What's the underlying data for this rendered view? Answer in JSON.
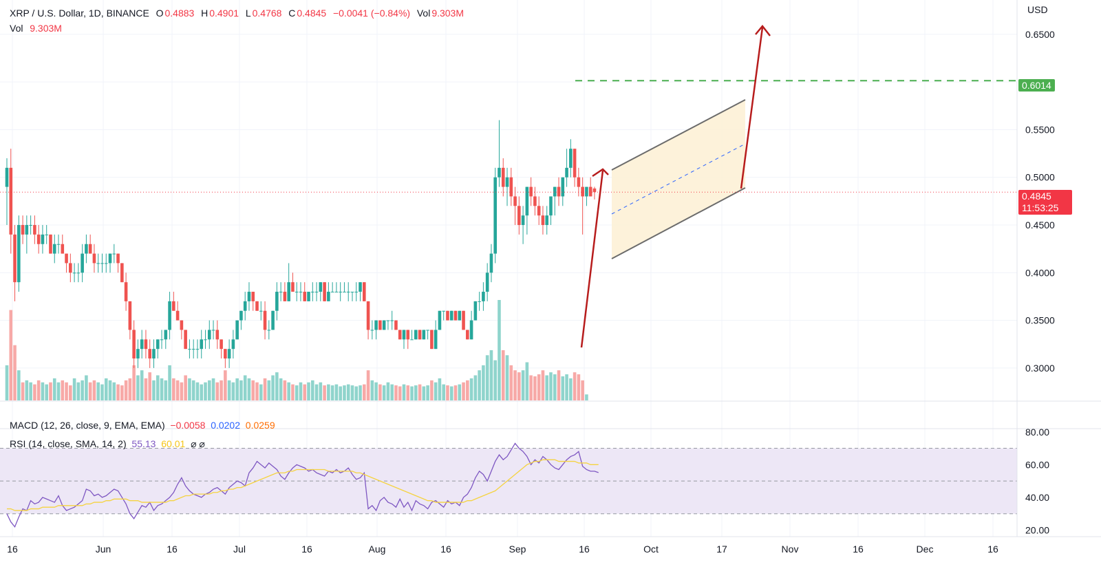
{
  "header": {
    "symbol": "XRP / U.S. Dollar, 1D, BINANCE",
    "o_label": "O",
    "o_value": "0.4883",
    "h_label": "H",
    "h_value": "0.4901",
    "l_label": "L",
    "l_value": "0.4768",
    "c_label": "C",
    "c_value": "0.4845",
    "change": "−0.0041 (−0.84%)",
    "vol_label": "Vol",
    "vol_value": "9.303M",
    "vol2_label": "Vol",
    "vol2_value": "9.303M"
  },
  "macd": {
    "label": "MACD (12, 26, close, 9, EMA, EMA)",
    "v1": "−0.0058",
    "v2": "0.0202",
    "v3": "0.0259"
  },
  "rsi": {
    "label": "RSI (14, close, SMA, 14, 2)",
    "v1": "55.13",
    "v2": "60.01",
    "icons": "⌀ ⌀"
  },
  "price_axis": {
    "unit": "USD",
    "ticks": [
      "0.6500",
      "0.5500",
      "0.5000",
      "0.4500",
      "0.4000",
      "0.3500",
      "0.3000"
    ],
    "last_price": "0.4845",
    "countdown": "11:53:25",
    "target_label": "0.6014"
  },
  "rsi_axis": {
    "ticks": [
      "80.00",
      "60.00",
      "40.00",
      "20.00"
    ]
  },
  "time_axis": [
    "16",
    "Jun",
    "16",
    "Jul",
    "16",
    "Aug",
    "16",
    "Sep",
    "16",
    "Oct",
    "17",
    "Nov",
    "16",
    "Dec",
    "16"
  ],
  "colors": {
    "up": "#26a69a",
    "down": "#ef5350",
    "vol_up": "#8fd4cc",
    "vol_down": "#f7a9a7",
    "target_line": "#4caf50",
    "arrow": "#b71c1c",
    "channel_fill": "#fdf1d6",
    "channel_line": "#6b6b6b",
    "rsi_line": "#7e57c2",
    "rsi_sma": "#f5d33f",
    "rsi_band": "#ede7f6"
  },
  "chart_data": {
    "type": "candlestick",
    "ylim": [
      0.266,
      0.686
    ],
    "target_level": 0.6014,
    "last_price": 0.4845,
    "ohlc": [
      [
        0.49,
        0.52,
        0.45,
        0.51
      ],
      [
        0.51,
        0.53,
        0.42,
        0.44
      ],
      [
        0.44,
        0.45,
        0.37,
        0.39
      ],
      [
        0.39,
        0.46,
        0.38,
        0.45
      ],
      [
        0.45,
        0.46,
        0.43,
        0.44
      ],
      [
        0.44,
        0.46,
        0.42,
        0.45
      ],
      [
        0.45,
        0.46,
        0.44,
        0.45
      ],
      [
        0.45,
        0.46,
        0.43,
        0.44
      ],
      [
        0.44,
        0.45,
        0.42,
        0.43
      ],
      [
        0.43,
        0.45,
        0.42,
        0.44
      ],
      [
        0.44,
        0.45,
        0.43,
        0.44
      ],
      [
        0.44,
        0.44,
        0.42,
        0.42
      ],
      [
        0.42,
        0.44,
        0.41,
        0.43
      ],
      [
        0.43,
        0.44,
        0.42,
        0.43
      ],
      [
        0.43,
        0.44,
        0.42,
        0.42
      ],
      [
        0.42,
        0.42,
        0.4,
        0.41
      ],
      [
        0.41,
        0.42,
        0.39,
        0.4
      ],
      [
        0.4,
        0.41,
        0.39,
        0.4
      ],
      [
        0.4,
        0.41,
        0.39,
        0.4
      ],
      [
        0.4,
        0.43,
        0.39,
        0.42
      ],
      [
        0.42,
        0.44,
        0.41,
        0.43
      ],
      [
        0.43,
        0.44,
        0.42,
        0.42
      ],
      [
        0.42,
        0.43,
        0.4,
        0.41
      ],
      [
        0.41,
        0.42,
        0.4,
        0.41
      ],
      [
        0.41,
        0.42,
        0.4,
        0.41
      ],
      [
        0.41,
        0.42,
        0.4,
        0.41
      ],
      [
        0.41,
        0.42,
        0.4,
        0.42
      ],
      [
        0.42,
        0.43,
        0.41,
        0.42
      ],
      [
        0.42,
        0.42,
        0.4,
        0.41
      ],
      [
        0.41,
        0.41,
        0.39,
        0.39
      ],
      [
        0.39,
        0.4,
        0.36,
        0.37
      ],
      [
        0.37,
        0.37,
        0.33,
        0.34
      ],
      [
        0.34,
        0.35,
        0.3,
        0.31
      ],
      [
        0.31,
        0.33,
        0.3,
        0.32
      ],
      [
        0.32,
        0.34,
        0.31,
        0.33
      ],
      [
        0.33,
        0.34,
        0.31,
        0.32
      ],
      [
        0.32,
        0.33,
        0.3,
        0.31
      ],
      [
        0.31,
        0.33,
        0.3,
        0.32
      ],
      [
        0.32,
        0.33,
        0.31,
        0.33
      ],
      [
        0.33,
        0.34,
        0.32,
        0.33
      ],
      [
        0.33,
        0.34,
        0.32,
        0.34
      ],
      [
        0.34,
        0.38,
        0.33,
        0.37
      ],
      [
        0.37,
        0.38,
        0.36,
        0.36
      ],
      [
        0.36,
        0.37,
        0.35,
        0.35
      ],
      [
        0.35,
        0.35,
        0.33,
        0.34
      ],
      [
        0.34,
        0.34,
        0.32,
        0.32
      ],
      [
        0.32,
        0.33,
        0.31,
        0.32
      ],
      [
        0.32,
        0.33,
        0.31,
        0.32
      ],
      [
        0.32,
        0.33,
        0.31,
        0.32
      ],
      [
        0.32,
        0.34,
        0.31,
        0.33
      ],
      [
        0.33,
        0.34,
        0.32,
        0.33
      ],
      [
        0.33,
        0.35,
        0.32,
        0.34
      ],
      [
        0.34,
        0.35,
        0.33,
        0.34
      ],
      [
        0.34,
        0.35,
        0.32,
        0.33
      ],
      [
        0.33,
        0.33,
        0.31,
        0.32
      ],
      [
        0.32,
        0.32,
        0.3,
        0.31
      ],
      [
        0.31,
        0.33,
        0.3,
        0.32
      ],
      [
        0.32,
        0.34,
        0.31,
        0.33
      ],
      [
        0.33,
        0.35,
        0.33,
        0.35
      ],
      [
        0.35,
        0.36,
        0.34,
        0.36
      ],
      [
        0.36,
        0.38,
        0.35,
        0.37
      ],
      [
        0.37,
        0.39,
        0.36,
        0.38
      ],
      [
        0.38,
        0.38,
        0.36,
        0.37
      ],
      [
        0.37,
        0.37,
        0.36,
        0.36
      ],
      [
        0.36,
        0.37,
        0.35,
        0.36
      ],
      [
        0.36,
        0.37,
        0.33,
        0.34
      ],
      [
        0.34,
        0.35,
        0.33,
        0.34
      ],
      [
        0.34,
        0.36,
        0.34,
        0.36
      ],
      [
        0.36,
        0.39,
        0.35,
        0.38
      ],
      [
        0.38,
        0.39,
        0.37,
        0.38
      ],
      [
        0.38,
        0.39,
        0.37,
        0.37
      ],
      [
        0.37,
        0.41,
        0.37,
        0.39
      ],
      [
        0.39,
        0.4,
        0.38,
        0.38
      ],
      [
        0.38,
        0.39,
        0.37,
        0.38
      ],
      [
        0.38,
        0.39,
        0.37,
        0.38
      ],
      [
        0.38,
        0.39,
        0.37,
        0.37
      ],
      [
        0.37,
        0.38,
        0.37,
        0.38
      ],
      [
        0.38,
        0.39,
        0.37,
        0.38
      ],
      [
        0.38,
        0.39,
        0.37,
        0.38
      ],
      [
        0.38,
        0.39,
        0.37,
        0.39
      ],
      [
        0.39,
        0.39,
        0.37,
        0.37
      ],
      [
        0.37,
        0.39,
        0.37,
        0.38
      ],
      [
        0.38,
        0.39,
        0.38,
        0.38
      ],
      [
        0.38,
        0.39,
        0.38,
        0.38
      ],
      [
        0.38,
        0.39,
        0.37,
        0.38
      ],
      [
        0.38,
        0.39,
        0.38,
        0.38
      ],
      [
        0.38,
        0.39,
        0.37,
        0.38
      ],
      [
        0.38,
        0.38,
        0.37,
        0.38
      ],
      [
        0.38,
        0.39,
        0.37,
        0.38
      ],
      [
        0.38,
        0.39,
        0.37,
        0.39
      ],
      [
        0.39,
        0.39,
        0.37,
        0.37
      ],
      [
        0.37,
        0.37,
        0.33,
        0.34
      ],
      [
        0.34,
        0.35,
        0.33,
        0.34
      ],
      [
        0.34,
        0.35,
        0.33,
        0.35
      ],
      [
        0.35,
        0.35,
        0.34,
        0.34
      ],
      [
        0.34,
        0.35,
        0.34,
        0.35
      ],
      [
        0.35,
        0.35,
        0.34,
        0.35
      ],
      [
        0.35,
        0.36,
        0.34,
        0.35
      ],
      [
        0.35,
        0.35,
        0.34,
        0.34
      ],
      [
        0.34,
        0.34,
        0.33,
        0.33
      ],
      [
        0.33,
        0.34,
        0.32,
        0.34
      ],
      [
        0.34,
        0.34,
        0.32,
        0.33
      ],
      [
        0.33,
        0.34,
        0.33,
        0.33
      ],
      [
        0.33,
        0.34,
        0.33,
        0.34
      ],
      [
        0.34,
        0.34,
        0.33,
        0.33
      ],
      [
        0.33,
        0.34,
        0.33,
        0.34
      ],
      [
        0.34,
        0.34,
        0.33,
        0.34
      ],
      [
        0.34,
        0.34,
        0.32,
        0.32
      ],
      [
        0.32,
        0.35,
        0.32,
        0.34
      ],
      [
        0.34,
        0.36,
        0.34,
        0.36
      ],
      [
        0.36,
        0.36,
        0.35,
        0.36
      ],
      [
        0.36,
        0.36,
        0.35,
        0.35
      ],
      [
        0.35,
        0.36,
        0.35,
        0.36
      ],
      [
        0.36,
        0.36,
        0.35,
        0.35
      ],
      [
        0.35,
        0.36,
        0.35,
        0.36
      ],
      [
        0.36,
        0.36,
        0.34,
        0.34
      ],
      [
        0.34,
        0.34,
        0.33,
        0.33
      ],
      [
        0.33,
        0.36,
        0.33,
        0.35
      ],
      [
        0.35,
        0.37,
        0.35,
        0.37
      ],
      [
        0.37,
        0.38,
        0.36,
        0.37
      ],
      [
        0.37,
        0.39,
        0.36,
        0.38
      ],
      [
        0.38,
        0.41,
        0.37,
        0.4
      ],
      [
        0.4,
        0.43,
        0.39,
        0.42
      ],
      [
        0.42,
        0.51,
        0.41,
        0.5
      ],
      [
        0.5,
        0.56,
        0.49,
        0.51
      ],
      [
        0.51,
        0.52,
        0.48,
        0.49
      ],
      [
        0.49,
        0.51,
        0.47,
        0.5
      ],
      [
        0.5,
        0.51,
        0.47,
        0.48
      ],
      [
        0.48,
        0.49,
        0.45,
        0.47
      ],
      [
        0.47,
        0.48,
        0.44,
        0.45
      ],
      [
        0.45,
        0.47,
        0.43,
        0.46
      ],
      [
        0.46,
        0.49,
        0.44,
        0.49
      ],
      [
        0.49,
        0.5,
        0.47,
        0.48
      ],
      [
        0.48,
        0.49,
        0.46,
        0.47
      ],
      [
        0.47,
        0.48,
        0.45,
        0.46
      ],
      [
        0.46,
        0.47,
        0.44,
        0.45
      ],
      [
        0.45,
        0.47,
        0.44,
        0.46
      ],
      [
        0.46,
        0.48,
        0.45,
        0.48
      ],
      [
        0.48,
        0.49,
        0.46,
        0.49
      ],
      [
        0.49,
        0.5,
        0.47,
        0.48
      ],
      [
        0.48,
        0.5,
        0.47,
        0.5
      ],
      [
        0.5,
        0.53,
        0.49,
        0.51
      ],
      [
        0.51,
        0.54,
        0.5,
        0.53
      ],
      [
        0.53,
        0.53,
        0.49,
        0.5
      ],
      [
        0.5,
        0.51,
        0.48,
        0.49
      ],
      [
        0.49,
        0.5,
        0.44,
        0.48
      ],
      [
        0.48,
        0.49,
        0.47,
        0.49
      ],
      [
        0.49,
        0.5,
        0.48,
        0.48
      ],
      [
        0.4883,
        0.4901,
        0.4768,
        0.4845
      ]
    ],
    "volume_rel": [
      0.35,
      0.9,
      0.55,
      0.3,
      0.18,
      0.2,
      0.18,
      0.16,
      0.2,
      0.18,
      0.16,
      0.18,
      0.22,
      0.18,
      0.2,
      0.18,
      0.15,
      0.22,
      0.18,
      0.2,
      0.25,
      0.18,
      0.2,
      0.18,
      0.16,
      0.22,
      0.2,
      0.18,
      0.16,
      0.15,
      0.2,
      0.22,
      0.35,
      0.25,
      0.3,
      0.22,
      0.28,
      0.2,
      0.25,
      0.22,
      0.2,
      0.35,
      0.22,
      0.2,
      0.18,
      0.25,
      0.22,
      0.2,
      0.18,
      0.16,
      0.18,
      0.2,
      0.22,
      0.18,
      0.2,
      0.3,
      0.2,
      0.18,
      0.22,
      0.2,
      0.25,
      0.22,
      0.2,
      0.18,
      0.16,
      0.22,
      0.2,
      0.25,
      0.28,
      0.22,
      0.2,
      0.18,
      0.16,
      0.15,
      0.18,
      0.16,
      0.18,
      0.2,
      0.16,
      0.18,
      0.15,
      0.16,
      0.15,
      0.16,
      0.14,
      0.15,
      0.16,
      0.15,
      0.14,
      0.15,
      0.16,
      0.3,
      0.2,
      0.18,
      0.16,
      0.15,
      0.18,
      0.16,
      0.15,
      0.14,
      0.16,
      0.15,
      0.14,
      0.15,
      0.16,
      0.14,
      0.15,
      0.2,
      0.18,
      0.22,
      0.16,
      0.15,
      0.14,
      0.15,
      0.16,
      0.18,
      0.2,
      0.22,
      0.25,
      0.3,
      0.35,
      0.45,
      0.5,
      0.4,
      1.0,
      0.5,
      0.45,
      0.35,
      0.3,
      0.28,
      0.3,
      0.38,
      0.25,
      0.24,
      0.26,
      0.3,
      0.25,
      0.28,
      0.26,
      0.3,
      0.24,
      0.26,
      0.22,
      0.28,
      0.26,
      0.2,
      0.06
    ],
    "rsi": [
      30,
      25,
      22,
      28,
      33,
      32,
      38,
      36,
      37,
      40,
      39,
      38,
      37,
      41,
      35,
      32,
      33,
      34,
      36,
      38,
      45,
      44,
      41,
      42,
      40,
      41,
      43,
      45,
      44,
      40,
      36,
      30,
      27,
      31,
      35,
      34,
      37,
      32,
      35,
      36,
      38,
      40,
      43,
      48,
      52,
      47,
      44,
      42,
      41,
      40,
      42,
      43,
      45,
      46,
      44,
      42,
      46,
      48,
      50,
      49,
      47,
      55,
      58,
      62,
      60,
      58,
      61,
      59,
      57,
      53,
      51,
      55,
      58,
      60,
      59,
      58,
      56,
      57,
      55,
      54,
      53,
      56,
      55,
      57,
      55,
      56,
      58,
      54,
      51,
      52,
      55,
      33,
      35,
      32,
      38,
      40,
      37,
      36,
      34,
      39,
      34,
      37,
      32,
      38,
      36,
      35,
      33,
      37,
      38,
      36,
      34,
      38,
      36,
      37,
      35,
      40,
      42,
      46,
      52,
      56,
      54,
      50,
      56,
      62,
      66,
      63,
      65,
      69,
      73,
      70,
      68,
      65,
      60,
      63,
      61,
      65,
      63,
      60,
      58,
      57,
      60,
      63,
      65,
      66,
      68,
      59,
      57,
      56,
      56,
      55.13
    ],
    "rsi_sma": [
      33,
      33,
      32,
      32,
      32,
      32,
      33,
      33,
      33,
      34,
      34,
      34,
      34,
      35,
      35,
      35,
      35,
      35,
      35,
      35,
      36,
      36,
      37,
      37,
      37,
      38,
      38,
      39,
      39,
      39,
      39,
      38,
      38,
      38,
      37,
      37,
      37,
      37,
      37,
      37,
      37,
      38,
      38,
      39,
      40,
      41,
      41,
      42,
      42,
      42,
      42,
      42,
      43,
      43,
      44,
      44,
      45,
      45,
      46,
      46,
      47,
      48,
      49,
      50,
      51,
      52,
      53,
      54,
      55,
      55,
      55,
      56,
      56,
      57,
      57,
      57,
      57,
      57,
      57,
      57,
      57,
      56,
      56,
      56,
      56,
      56,
      56,
      56,
      55,
      55,
      54,
      53,
      52,
      51,
      50,
      49,
      48,
      47,
      46,
      45,
      44,
      43,
      42,
      41,
      40,
      39,
      38,
      38,
      37,
      37,
      37,
      37,
      37,
      37,
      37,
      37,
      38,
      38,
      39,
      40,
      41,
      42,
      43,
      44,
      46,
      48,
      50,
      52,
      54,
      56,
      58,
      60,
      61,
      62,
      62,
      63,
      63,
      63,
      63,
      62,
      62,
      62,
      62,
      62,
      61,
      61,
      61,
      60,
      60,
      60.01
    ],
    "rsi_ylim": [
      16,
      82
    ],
    "rsi_bands": [
      70,
      50,
      30
    ]
  }
}
